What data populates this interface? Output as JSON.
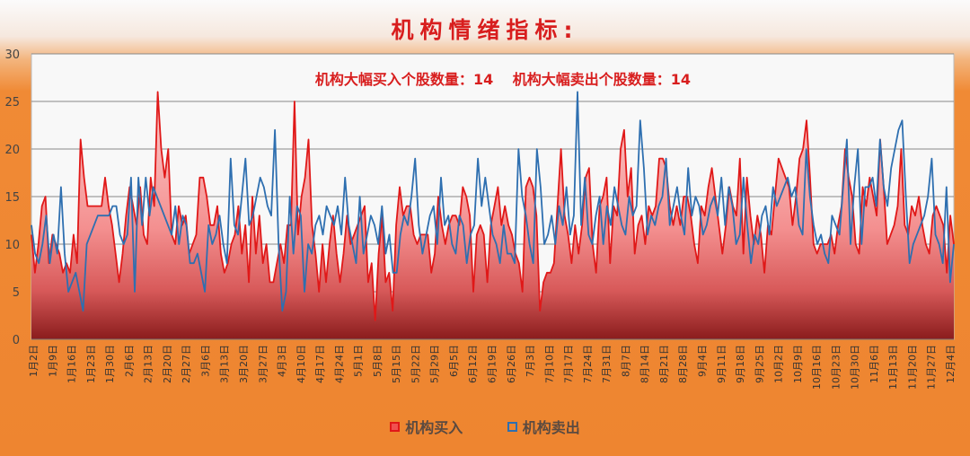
{
  "chart_data": {
    "type": "area",
    "title": "机构情绪指标:",
    "annotations": {
      "buy_label": "机构大幅买入个股数量：",
      "buy_value": "14",
      "sell_label": "机构大幅卖出个股数量：",
      "sell_value": "14"
    },
    "ylim": [
      0,
      30
    ],
    "yticks": [
      "0",
      "5",
      "10",
      "15",
      "20",
      "25",
      "30"
    ],
    "grid": true,
    "legend_position": "bottom",
    "xtick_labels": [
      "1月2日",
      "1月9日",
      "1月16日",
      "1月23日",
      "1月30日",
      "2月6日",
      "2月13日",
      "2月20日",
      "2月27日",
      "3月6日",
      "3月13日",
      "3月20日",
      "3月27日",
      "4月3日",
      "4月10日",
      "4月17日",
      "4月24日",
      "5月1日",
      "5月8日",
      "5月15日",
      "5月22日",
      "5月29日",
      "6月5日",
      "6月12日",
      "6月19日",
      "6月26日",
      "7月3日",
      "7月10日",
      "7月17日",
      "7月24日",
      "7月31日",
      "8月7日",
      "8月14日",
      "8月21日",
      "8月28日",
      "9月4日",
      "9月11日",
      "9月18日",
      "9月25日",
      "10月2日",
      "10月9日",
      "10月16日",
      "10月23日",
      "10月30日",
      "11月6日",
      "11月13日",
      "11月20日",
      "11月27日",
      "12月4日"
    ],
    "series": [
      {
        "name": "机构买入",
        "type": "area",
        "color": "#e01818",
        "values": [
          11,
          7,
          10,
          14,
          15,
          8,
          11,
          10,
          9,
          7,
          8,
          7,
          11,
          8,
          21,
          17,
          14,
          14,
          14,
          14,
          14,
          17,
          14,
          12,
          9,
          6,
          9,
          13,
          16,
          14,
          12,
          16,
          11,
          10,
          17,
          14,
          26,
          20,
          17,
          20,
          11,
          10,
          14,
          12,
          13,
          9,
          10,
          11,
          17,
          17,
          15,
          12,
          12,
          14,
          9,
          7,
          8,
          10,
          11,
          14,
          9,
          12,
          6,
          15,
          9,
          13,
          8,
          10,
          6,
          6,
          8,
          10,
          8,
          12,
          12,
          25,
          11,
          15,
          17,
          21,
          12,
          9,
          5,
          10,
          6,
          10,
          13,
          9,
          6,
          9,
          13,
          10,
          11,
          12,
          13,
          14,
          6,
          8,
          2,
          9,
          13,
          6,
          7,
          3,
          12,
          16,
          13,
          14,
          14,
          11,
          10,
          11,
          11,
          11,
          7,
          9,
          15,
          12,
          10,
          12,
          13,
          13,
          12,
          16,
          15,
          13,
          5,
          11,
          12,
          11,
          6,
          12,
          14,
          16,
          12,
          14,
          12,
          11,
          9,
          8,
          5,
          16,
          17,
          16,
          13,
          3,
          6,
          7,
          7,
          8,
          14,
          20,
          13,
          11,
          8,
          12,
          9,
          12,
          17,
          18,
          10,
          7,
          14,
          15,
          17,
          8,
          14,
          13,
          20,
          22,
          15,
          18,
          9,
          12,
          13,
          10,
          14,
          13,
          14,
          19,
          19,
          18,
          14,
          12,
          14,
          12,
          15,
          15,
          13,
          10,
          8,
          14,
          13,
          16,
          18,
          15,
          12,
          9,
          12,
          16,
          14,
          13,
          19,
          9,
          17,
          13,
          10,
          13,
          11,
          7,
          12,
          11,
          15,
          19,
          18,
          17,
          16,
          12,
          15,
          19,
          20,
          23,
          17,
          10,
          9,
          10,
          10,
          10,
          11,
          9,
          12,
          14,
          20,
          17,
          15,
          10,
          9,
          16,
          14,
          17,
          15,
          13,
          21,
          16,
          10,
          11,
          12,
          14,
          20,
          12,
          11,
          14,
          13,
          15,
          12,
          10,
          9,
          13,
          14,
          13,
          12,
          7,
          13,
          10
        ]
      },
      {
        "name": "机构卖出",
        "type": "line",
        "color": "#2e6fb0",
        "values": [
          12,
          9,
          8,
          10,
          13,
          8,
          11,
          9,
          16,
          9,
          5,
          6,
          7,
          5,
          3,
          10,
          11,
          12,
          13,
          13,
          13,
          13,
          14,
          14,
          11,
          10,
          11,
          17,
          5,
          17,
          12,
          17,
          13,
          16,
          15,
          14,
          13,
          12,
          11,
          14,
          10,
          13,
          12,
          8,
          8,
          9,
          7,
          5,
          12,
          10,
          11,
          13,
          10,
          8,
          19,
          12,
          11,
          15,
          19,
          12,
          13,
          15,
          17,
          16,
          14,
          13,
          22,
          10,
          3,
          5,
          15,
          9,
          14,
          13,
          5,
          10,
          9,
          12,
          13,
          11,
          14,
          13,
          12,
          14,
          11,
          17,
          12,
          10,
          8,
          15,
          9,
          11,
          13,
          12,
          10,
          14,
          9,
          11,
          7,
          7,
          11,
          13,
          12,
          15,
          19,
          12,
          9,
          11,
          13,
          14,
          10,
          17,
          12,
          13,
          10,
          9,
          13,
          12,
          8,
          11,
          12,
          19,
          14,
          17,
          14,
          11,
          10,
          8,
          12,
          9,
          9,
          8,
          20,
          15,
          13,
          10,
          8,
          20,
          16,
          10,
          11,
          13,
          10,
          14,
          12,
          16,
          11,
          13,
          26,
          12,
          17,
          11,
          10,
          13,
          15,
          10,
          14,
          12,
          16,
          14,
          12,
          11,
          15,
          13,
          14,
          23,
          18,
          11,
          13,
          12,
          14,
          15,
          19,
          12,
          14,
          16,
          13,
          11,
          18,
          13,
          15,
          14,
          11,
          12,
          14,
          15,
          13,
          17,
          12,
          16,
          14,
          10,
          11,
          17,
          12,
          8,
          11,
          10,
          13,
          14,
          11,
          16,
          14,
          15,
          16,
          17,
          15,
          16,
          12,
          11,
          20,
          15,
          12,
          10,
          11,
          9,
          8,
          13,
          12,
          11,
          16,
          21,
          10,
          16,
          20,
          10,
          16,
          16,
          17,
          14,
          21,
          16,
          14,
          18,
          20,
          22,
          23,
          15,
          8,
          10,
          11,
          12,
          13,
          15,
          19,
          11,
          10,
          8,
          16,
          6,
          10
        ]
      }
    ]
  }
}
